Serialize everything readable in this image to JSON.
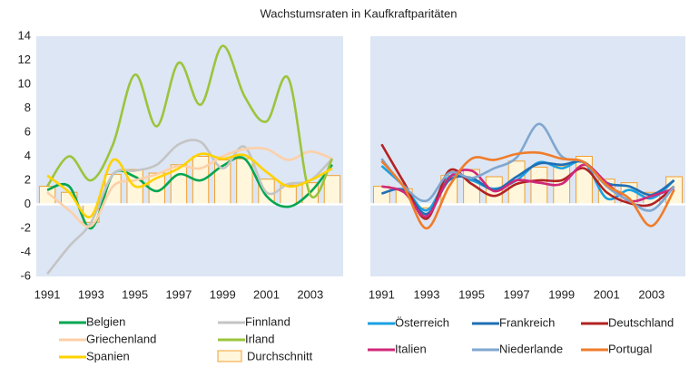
{
  "title": "Wachstumsraten in Kaufkraftparitäten",
  "chart_data": [
    {
      "type": "line",
      "categories": [
        "1991",
        null,
        "1993",
        null,
        "1995",
        null,
        "1997",
        null,
        "1999",
        null,
        "2001",
        null,
        "2003",
        null
      ],
      "ylim": [
        -6,
        14
      ],
      "yticks": [
        -6,
        -4,
        -2,
        0,
        2,
        4,
        6,
        8,
        10,
        12,
        14
      ],
      "bar_series": {
        "name": "Durchschnitt",
        "color": "#f0a030",
        "values": [
          1.5,
          1.0,
          -1.5,
          2.5,
          2.9,
          2.6,
          3.3,
          4.0,
          3.7,
          3.8,
          2.1,
          1.6,
          1.8,
          2.4
        ]
      },
      "series": [
        {
          "name": "Belgien",
          "color": "#00a651",
          "values": [
            1.2,
            1.5,
            -2.0,
            2.5,
            2.3,
            1.1,
            2.5,
            2.0,
            3.2,
            3.8,
            0.7,
            -0.2,
            1.0,
            3.3
          ]
        },
        {
          "name": "Finnland",
          "color": "#c4c4c4",
          "values": [
            -5.8,
            -3.5,
            -1.5,
            2.5,
            2.8,
            3.3,
            5.0,
            5.2,
            3.0,
            4.8,
            1.0,
            1.7,
            2.0,
            3.8
          ]
        },
        {
          "name": "Griechenland",
          "color": "#fcd0a8",
          "values": [
            1.0,
            -0.5,
            -1.8,
            1.5,
            2.0,
            2.5,
            3.2,
            3.0,
            4.0,
            4.6,
            4.6,
            3.7,
            4.4,
            3.8
          ]
        },
        {
          "name": "Irland",
          "color": "#9bc43c",
          "values": [
            1.5,
            4.0,
            2.0,
            5.0,
            10.8,
            6.5,
            11.8,
            8.3,
            13.2,
            9.0,
            6.9,
            10.5,
            0.8,
            3.8
          ]
        },
        {
          "name": "Spanien",
          "color": "#ffd200",
          "values": [
            2.4,
            1.0,
            -1.0,
            3.7,
            1.5,
            2.2,
            3.0,
            4.2,
            3.8,
            4.1,
            2.7,
            1.5,
            2.0,
            3.0
          ]
        }
      ]
    },
    {
      "type": "line",
      "categories": [
        "1991",
        null,
        "1993",
        null,
        "1995",
        null,
        "1997",
        null,
        "1999",
        null,
        "2001",
        null,
        "2003",
        null
      ],
      "ylim": [
        -6,
        14
      ],
      "bar_series": {
        "color": "#f0a030",
        "values": [
          1.5,
          1.3,
          -0.3,
          2.4,
          2.9,
          2.3,
          3.6,
          3.1,
          3.2,
          4.0,
          2.1,
          1.8,
          1.0,
          2.3
        ]
      },
      "series": [
        {
          "name": "Österreich",
          "color": "#1ba1e2",
          "values": [
            3.2,
            1.5,
            -0.5,
            2.3,
            2.0,
            1.3,
            2.0,
            3.5,
            3.0,
            3.5,
            0.5,
            1.2,
            0.5,
            2.0
          ]
        },
        {
          "name": "Frankreich",
          "color": "#1f6fb5",
          "values": [
            0.9,
            1.2,
            -0.8,
            2.0,
            2.2,
            1.2,
            2.3,
            3.4,
            3.3,
            3.5,
            1.8,
            1.5,
            0.8,
            2.0
          ]
        },
        {
          "name": "Deutschland",
          "color": "#b22222",
          "values": [
            5.0,
            1.8,
            -1.2,
            2.8,
            1.7,
            0.7,
            1.7,
            2.0,
            2.0,
            3.0,
            1.0,
            0.1,
            0.0,
            1.5
          ]
        },
        {
          "name": "Italien",
          "color": "#d0287a",
          "values": [
            1.5,
            1.0,
            -1.0,
            2.2,
            2.8,
            1.1,
            2.0,
            1.8,
            1.7,
            3.3,
            1.8,
            0.3,
            0.7,
            1.3
          ]
        },
        {
          "name": "Niederlande",
          "color": "#7fa7d0",
          "values": [
            3.8,
            1.5,
            0.3,
            2.6,
            2.2,
            3.0,
            3.9,
            6.7,
            4.0,
            3.5,
            1.5,
            0.3,
            -0.5,
            1.5
          ]
        },
        {
          "name": "Portugal",
          "color": "#f07c2a",
          "values": [
            3.6,
            1.4,
            -2.0,
            1.5,
            3.8,
            3.7,
            4.2,
            4.3,
            3.8,
            3.5,
            1.6,
            0.5,
            -1.8,
            1.2
          ]
        }
      ]
    }
  ]
}
